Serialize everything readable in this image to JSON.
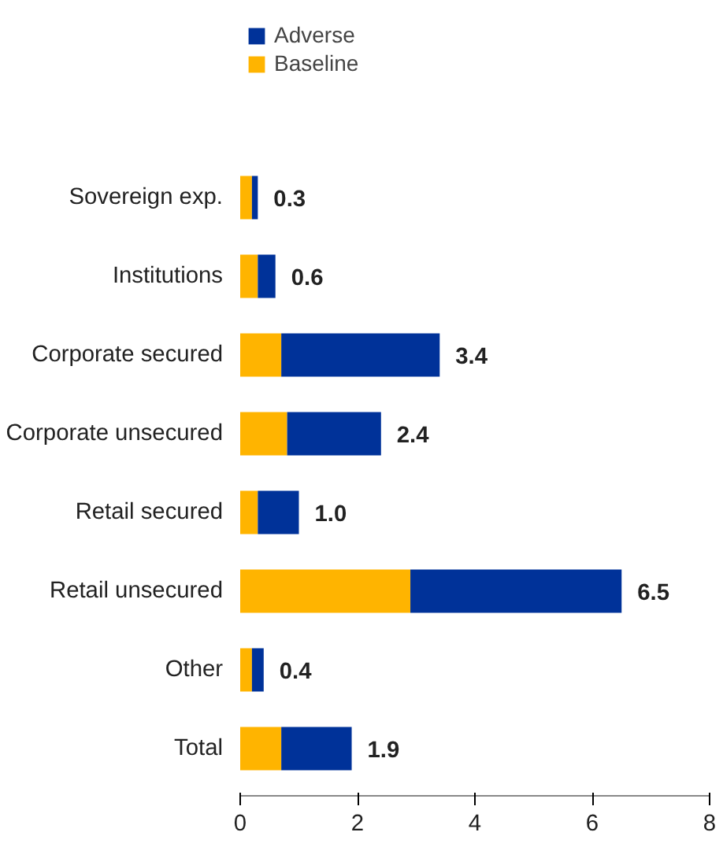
{
  "chart_data": {
    "type": "bar",
    "orientation": "horizontal",
    "stacked": true,
    "categories": [
      "Sovereign exp.",
      "Institutions",
      "Corporate secured",
      "Corporate unsecured",
      "Retail secured",
      "Retail unsecured",
      "Other",
      "Total"
    ],
    "series": [
      {
        "name": "Baseline",
        "color": "#ffb400",
        "values": [
          0.2,
          0.3,
          0.7,
          0.8,
          0.3,
          2.9,
          0.2,
          0.7
        ]
      },
      {
        "name": "Adverse",
        "color": "#003299",
        "values": [
          0.1,
          0.3,
          2.7,
          1.6,
          0.7,
          3.6,
          0.2,
          1.2
        ]
      }
    ],
    "totals": [
      "0.3",
      "0.6",
      "3.4",
      "2.4",
      "1.0",
      "6.5",
      "0.4",
      "1.9"
    ],
    "xlim": [
      0,
      8
    ],
    "xticks": [
      0,
      2,
      4,
      6,
      8
    ],
    "grid": false,
    "legend": "top"
  }
}
